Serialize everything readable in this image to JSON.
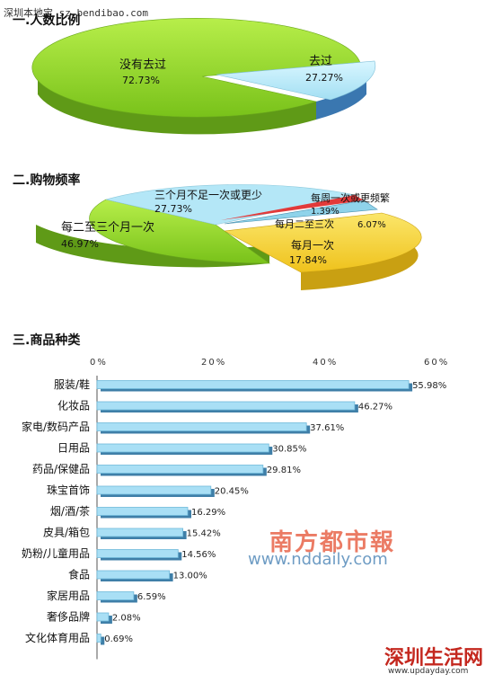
{
  "watermark_top": "深圳本地宝 sz.bendibao.com",
  "brand": {
    "name": "南方都市報",
    "url": "www.nddaily.com"
  },
  "logo2": {
    "name": "深圳生活网",
    "url": "www.updayday.com"
  },
  "chart_data": [
    {
      "type": "pie",
      "title": "一.人数比例",
      "labels": [
        "没有去过",
        "去过"
      ],
      "values": [
        72.73,
        27.27
      ],
      "value_labels": [
        "72.73%",
        "27.27%"
      ],
      "colors": [
        "#8ed12a",
        "#b4e7f7"
      ]
    },
    {
      "type": "pie",
      "title": "二.购物频率",
      "labels": [
        "每二至三个月一次",
        "三个月不足一次或更少",
        "每周一次或更频繁",
        "每月二至三次",
        "每月一次"
      ],
      "values": [
        46.97,
        27.73,
        1.39,
        6.07,
        17.84
      ],
      "value_labels": [
        "46.97%",
        "27.73%",
        "1.39%",
        "6.07%",
        "17.84%"
      ],
      "colors": [
        "#8ed12a",
        "#b4e7f7",
        "#e23a3a",
        "#8fd3ea",
        "#f5d43c"
      ]
    },
    {
      "type": "bar",
      "orientation": "horizontal",
      "title": "三.商品种类",
      "categories": [
        "服装/鞋",
        "化妆品",
        "家电/数码产品",
        "日用品",
        "药品/保健品",
        "珠宝首饰",
        "烟/酒/茶",
        "皮具/箱包",
        "奶粉/儿童用品",
        "食品",
        "家居用品",
        "奢侈品牌",
        "文化体育用品"
      ],
      "values": [
        55.98,
        46.27,
        37.61,
        30.85,
        29.81,
        20.45,
        16.29,
        15.42,
        14.56,
        13.0,
        6.59,
        2.08,
        0.69
      ],
      "value_labels": [
        "55.98%",
        "46.27%",
        "37.61%",
        "30.85%",
        "29.81%",
        "20.45%",
        "16.29%",
        "15.42%",
        "14.56%",
        "13.00%",
        "6.59%",
        "2.08%",
        "0.69%"
      ],
      "xticks": [
        "0%",
        "20%",
        "40%",
        "60%"
      ],
      "xlim": [
        0,
        60
      ],
      "bar_color": "#a9dff5"
    }
  ]
}
